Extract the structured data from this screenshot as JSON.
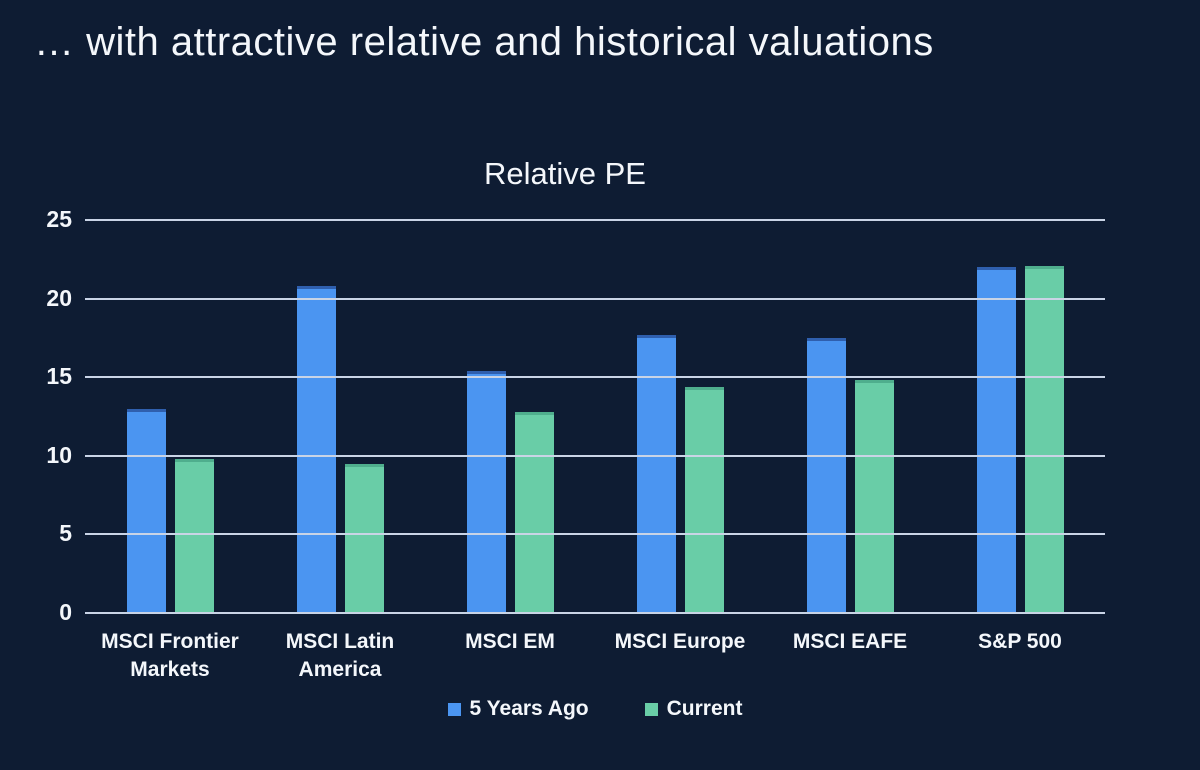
{
  "slide": {
    "title": "… with attractive relative and historical valuations"
  },
  "chart_data": {
    "type": "bar",
    "title": "Relative PE",
    "categories": [
      "MSCI Frontier Markets",
      "MSCI Latin America",
      "MSCI EM",
      "MSCI Europe",
      "MSCI EAFE",
      "S&P 500"
    ],
    "series": [
      {
        "name": "5 Years Ago",
        "color": "#4b95f1",
        "edge_color": "#2f5fae",
        "values": [
          13.0,
          20.8,
          15.4,
          17.7,
          17.5,
          22.0
        ]
      },
      {
        "name": "Current",
        "color": "#69cda7",
        "edge_color": "#4fae8d",
        "values": [
          9.8,
          9.5,
          12.8,
          14.4,
          14.8,
          22.1
        ]
      }
    ],
    "ylim": [
      0,
      25
    ],
    "yticks": [
      0,
      5,
      10,
      15,
      20,
      25
    ],
    "grid": "horizontal",
    "legend_position": "bottom",
    "colors": {
      "background": "#0e1c33",
      "gridline": "#c9d4e6",
      "text": "#f4f7fb"
    }
  }
}
